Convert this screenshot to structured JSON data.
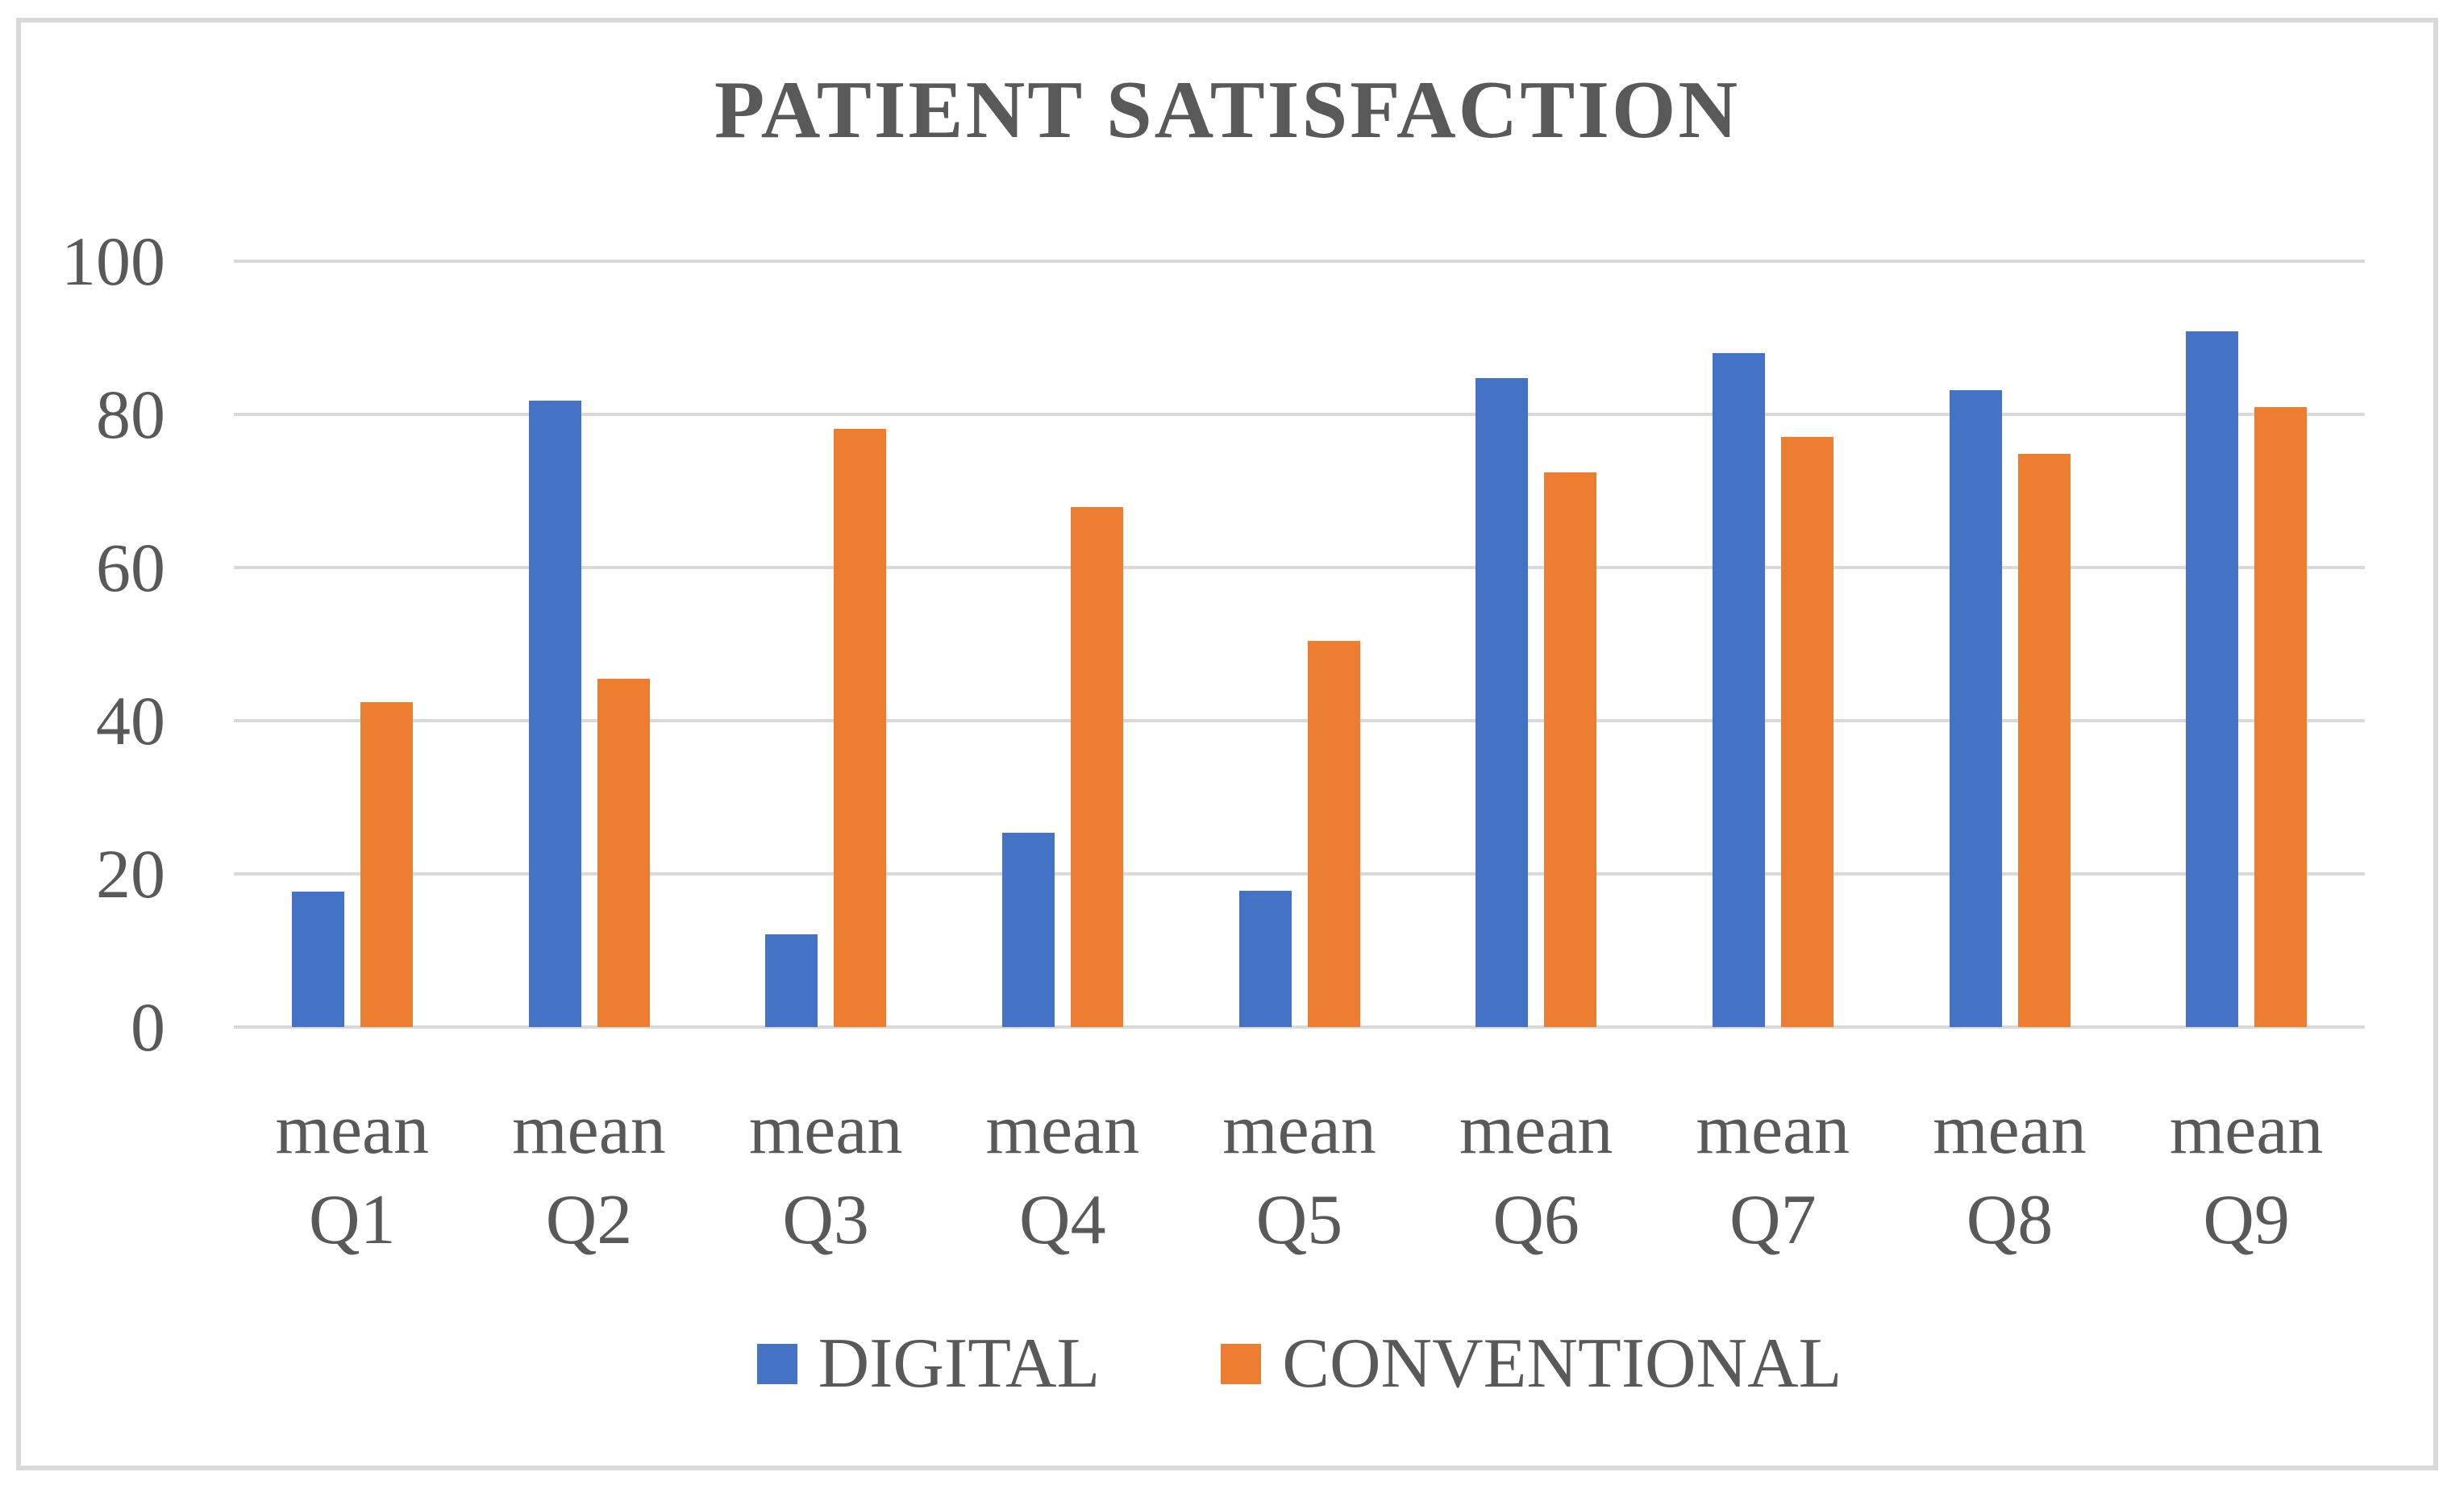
{
  "chart_data": {
    "type": "bar",
    "title": "PATIENT SATISFACTION",
    "categories": [
      "mean Q1",
      "mean Q2",
      "mean Q3",
      "mean Q4",
      "mean Q5",
      "mean Q6",
      "mean Q7",
      "mean Q8",
      "mean Q9"
    ],
    "series": [
      {
        "name": "DIGITAL",
        "color": "#4472C4",
        "values": [
          17.7,
          81.8,
          12.1,
          25.4,
          17.8,
          84.7,
          88.0,
          83.2,
          90.8
        ]
      },
      {
        "name": "CONVENTIONAL",
        "color": "#ED7D31",
        "values": [
          42.4,
          45.5,
          78.1,
          67.9,
          50.4,
          72.4,
          77.1,
          74.8,
          80.9
        ]
      }
    ],
    "ylim": [
      0,
      100
    ],
    "yticks": [
      0,
      20,
      40,
      60,
      80,
      100
    ],
    "grid": true,
    "legend_position": "bottom",
    "xlabel": "",
    "ylabel": ""
  },
  "colors": {
    "text": "#595959",
    "gridline": "#D9D9D9",
    "border": "#D9D9D9",
    "background": "#FFFFFF"
  }
}
